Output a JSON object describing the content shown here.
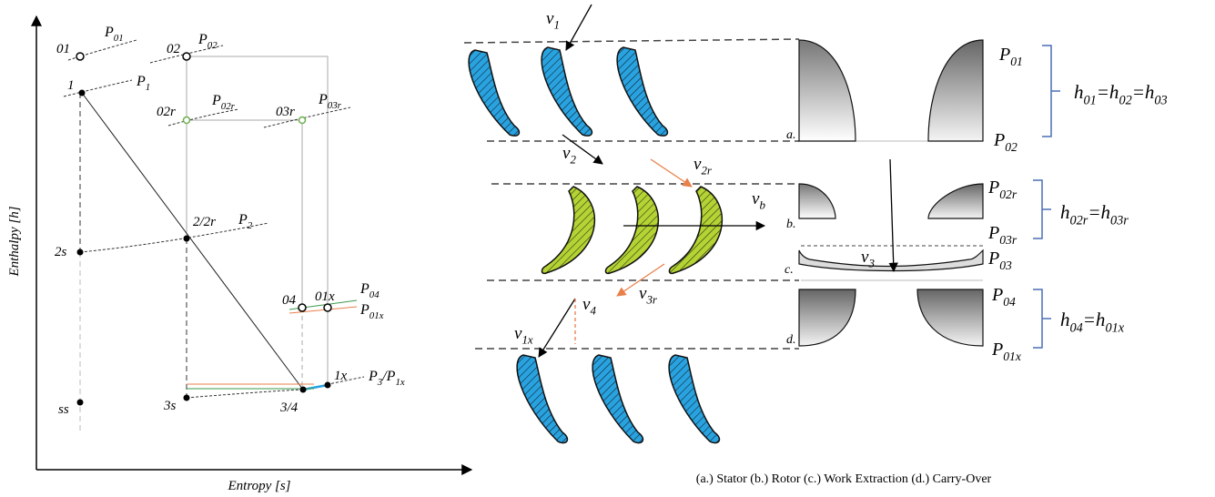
{
  "hs_diagram": {
    "y_axis_label": "Enthalpy [h]",
    "x_axis_label": "Entropy [s]",
    "states": [
      {
        "segments": [
          "01"
        ]
      },
      {
        "segments": [
          "02"
        ]
      },
      {
        "segments": [
          "1"
        ]
      },
      {
        "segments": [
          "02r"
        ]
      },
      {
        "segments": [
          "03r"
        ]
      },
      {
        "segments": [
          "2/2r"
        ]
      },
      {
        "segments": [
          "2s"
        ]
      },
      {
        "segments": [
          "04"
        ]
      },
      {
        "segments": [
          "01x"
        ]
      },
      {
        "segments": [
          "ss"
        ]
      },
      {
        "segments": [
          "3s"
        ]
      },
      {
        "segments": [
          "3/4"
        ]
      },
      {
        "segments": [
          "1x"
        ]
      }
    ],
    "isobars": [
      {
        "segments": [
          "P",
          "01"
        ]
      },
      {
        "segments": [
          "P",
          "02"
        ]
      },
      {
        "segments": [
          "P",
          "1"
        ]
      },
      {
        "segments": [
          "P",
          "02r"
        ]
      },
      {
        "segments": [
          "P",
          "03r"
        ]
      },
      {
        "segments": [
          "P",
          "2"
        ]
      },
      {
        "segments": [
          "P",
          "04"
        ]
      },
      {
        "segments": [
          "P",
          "01x"
        ]
      },
      {
        "segments": [
          "P",
          "3",
          "/P",
          "1x"
        ]
      }
    ]
  },
  "schematic": {
    "velocities": [
      {
        "segments": [
          "v",
          "1"
        ]
      },
      {
        "segments": [
          "v",
          "2"
        ]
      },
      {
        "segments": [
          "v",
          "2r"
        ]
      },
      {
        "segments": [
          "v",
          "b"
        ]
      },
      {
        "segments": [
          "v",
          "3"
        ]
      },
      {
        "segments": [
          "v",
          "3r"
        ]
      },
      {
        "segments": [
          "v",
          "4"
        ]
      },
      {
        "segments": [
          "v",
          "1x"
        ]
      }
    ],
    "stations": [
      "a.",
      "b.",
      "c.",
      "d."
    ],
    "pressures": [
      {
        "segments": [
          "P",
          "01"
        ]
      },
      {
        "segments": [
          "P",
          "02"
        ]
      },
      {
        "segments": [
          "P",
          "02r"
        ]
      },
      {
        "segments": [
          "P",
          "03r"
        ]
      },
      {
        "segments": [
          "P",
          "03"
        ]
      },
      {
        "segments": [
          "P",
          "04"
        ]
      },
      {
        "segments": [
          "P",
          "01x"
        ]
      }
    ],
    "equations": [
      {
        "segments": [
          "h",
          "01",
          "=h",
          "02",
          "=h",
          "03"
        ]
      },
      {
        "segments": [
          "h",
          "02r",
          "=h",
          "03r"
        ]
      },
      {
        "segments": [
          "h",
          "04",
          "=h",
          "01x"
        ]
      }
    ],
    "caption": "(a.) Stator (b.) Rotor (c.) Work Extraction (d.) Carry-Over"
  }
}
